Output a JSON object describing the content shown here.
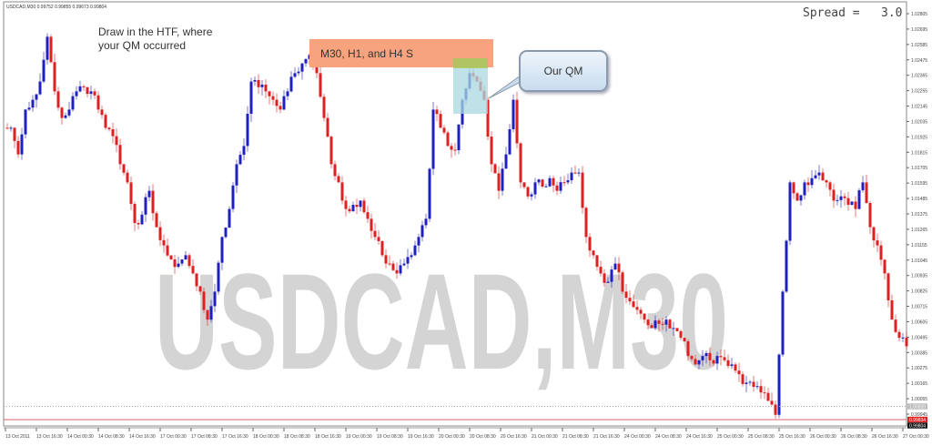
{
  "header": {
    "symbol_info": "USDCAD,M30  0.99752 0.99855 0.99673 0.99804"
  },
  "watermark": "USDCAD,M30",
  "spread": {
    "label": "Spread  =",
    "value": "3.0"
  },
  "annotations": {
    "htf_note": "Draw in the HTF, where your QM occurred",
    "zone_label": "M30, H1, and H4 S",
    "callout": "Our QM"
  },
  "colors": {
    "bull": "#2020c0",
    "bear": "#e02020",
    "zone": "#f7a47e",
    "qm_top": "#a8c860",
    "qm_box": "#a8d8e0",
    "watermark": "#d4d4d4"
  },
  "chart_data": {
    "type": "candlestick",
    "symbol": "USDCAD",
    "timeframe": "M30",
    "ylim": [
      0.9989,
      1.0286
    ],
    "y_ticks": [
      "1.02805",
      "1.02695",
      "1.02585",
      "1.02475",
      "1.02365",
      "1.02255",
      "1.02145",
      "1.02035",
      "1.01925",
      "1.01815",
      "1.01705",
      "1.01595",
      "1.01485",
      "1.01375",
      "1.01265",
      "1.01155",
      "1.01045",
      "1.00935",
      "1.00825",
      "1.00715",
      "1.00605",
      "1.00495",
      "1.00385",
      "1.00275",
      "1.00165",
      "1.00055",
      "0.99945"
    ],
    "x_ticks": [
      "13 Oct 2011",
      "13 Oct 16:30",
      "14 Oct 00:30",
      "14 Oct 08:30",
      "14 Oct 16:30",
      "17 Oct 00:30",
      "17 Oct 08:30",
      "17 Oct 16:30",
      "18 Oct 00:30",
      "18 Oct 08:30",
      "18 Oct 16:30",
      "19 Oct 00:30",
      "19 Oct 08:30",
      "19 Oct 16:30",
      "20 Oct 00:30",
      "20 Oct 08:30",
      "20 Oct 16:30",
      "21 Oct 00:30",
      "21 Oct 08:30",
      "21 Oct 16:30",
      "24 Oct 00:30",
      "24 Oct 08:30",
      "24 Oct 16:30",
      "25 Oct 00:30",
      "25 Oct 08:30",
      "25 Oct 16:30",
      "26 Oct 00:30",
      "26 Oct 08:30",
      "26 Oct 16:30",
      "27 Oct 00:30"
    ],
    "closes": [
      1.0199,
      1.018,
      1.0212,
      1.0219,
      1.0232,
      1.0264,
      1.0225,
      1.0206,
      1.0212,
      1.0225,
      1.0228,
      1.0225,
      1.0212,
      1.0199,
      1.0193,
      1.0173,
      1.016,
      1.0131,
      1.0137,
      1.0154,
      1.0128,
      1.0115,
      1.0105,
      1.0102,
      1.0108,
      1.0095,
      1.0082,
      1.0062,
      1.0082,
      1.0121,
      1.0141,
      1.0173,
      1.0186,
      1.0232,
      1.0228,
      1.0225,
      1.0219,
      1.0212,
      1.0225,
      1.0238,
      1.0245,
      1.0251,
      1.0238,
      1.0206,
      1.0173,
      1.016,
      1.0141,
      1.0144,
      1.0147,
      1.0134,
      1.0121,
      1.0108,
      1.0102,
      1.0095,
      1.0102,
      1.0108,
      1.0121,
      1.0134,
      1.0212,
      1.0199,
      1.0186,
      1.0183,
      1.0219,
      1.0238,
      1.0232,
      1.0219,
      1.0173,
      1.0154,
      1.018,
      1.0219,
      1.016,
      1.015,
      1.016,
      1.0157,
      1.0163,
      1.0154,
      1.016,
      1.0167,
      1.0167,
      1.0121,
      1.0108,
      1.0095,
      1.0089,
      1.0102,
      1.0082,
      1.0075,
      1.0069,
      1.0062,
      1.0056,
      1.0059,
      1.0062,
      1.0056,
      1.0049,
      1.0036,
      1.003,
      1.0036,
      1.0033,
      1.0036,
      1.0033,
      1.003,
      1.0023,
      1.0017,
      1.0014,
      1.001,
      1.0004,
      0.9994,
      1.0082,
      1.016,
      1.0147,
      1.016,
      1.0163,
      1.0167,
      1.016,
      1.0147,
      1.015,
      1.0144,
      1.0141,
      1.016,
      1.0128,
      1.0115,
      1.0095,
      1.0062,
      1.0049,
      1.0043
    ],
    "price_tags": {
      "level_line": "1.00020",
      "ask": "0.99834",
      "bid": "0.99804"
    },
    "grid": false
  }
}
